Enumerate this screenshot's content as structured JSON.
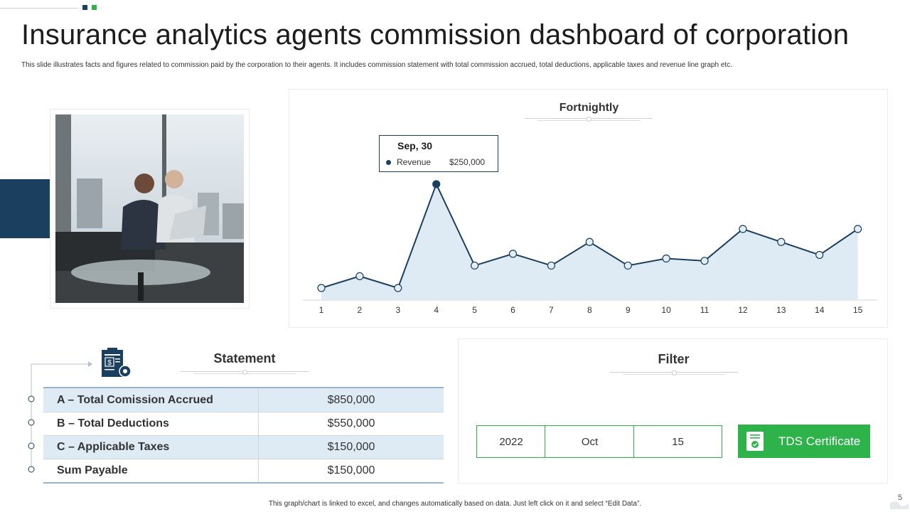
{
  "header": {
    "title": "Insurance analytics agents commission dashboard of corporation",
    "subtitle": "This slide illustrates facts and figures related to commission paid by the corporation to their agents. It includes commission statement with total commission accrued, total deductions, applicable taxes and revenue line graph etc."
  },
  "colors": {
    "navy": "#1b3f5e",
    "green": "#2eb24a",
    "area_fill": "#deeaf4"
  },
  "chart": {
    "title": "Fortnightly",
    "tooltip": {
      "date": "Sep, 30",
      "series": "Revenue",
      "value": "$250,000"
    }
  },
  "chart_data": {
    "type": "area",
    "title": "Fortnightly",
    "x": [
      1,
      2,
      3,
      4,
      5,
      6,
      7,
      8,
      9,
      10,
      11,
      12,
      13,
      14,
      15
    ],
    "series": [
      {
        "name": "Revenue",
        "values": [
          0,
          10,
          0,
          88,
          19,
          29,
          19,
          39,
          19,
          25,
          23,
          50,
          39,
          28,
          50
        ]
      }
    ],
    "ylim": [
      0,
      100
    ],
    "grid": false,
    "highlight": {
      "x": 4,
      "label": "Sep, 30",
      "series": "Revenue",
      "value": "$250,000"
    }
  },
  "statement": {
    "title": "Statement",
    "icon": "clipboard-dollar-gear-icon",
    "rows": [
      {
        "label": "A – Total Comission Accrued",
        "value": "$850,000"
      },
      {
        "label": "B – Total Deductions",
        "value": "$550,000"
      },
      {
        "label": "C – Applicable Taxes",
        "value": "$150,000"
      },
      {
        "label": "Sum Payable",
        "value": "$150,000"
      }
    ]
  },
  "filter": {
    "title": "Filter",
    "year": "2022",
    "month": "Oct",
    "day": "15",
    "certificate_button": "TDS Certificate",
    "certificate_icon": "certificate-check-icon"
  },
  "footer": {
    "note": "This graph/chart is linked to excel, and changes automatically based on data. Just left click on it and select “Edit Data”.",
    "page_number": "5"
  }
}
